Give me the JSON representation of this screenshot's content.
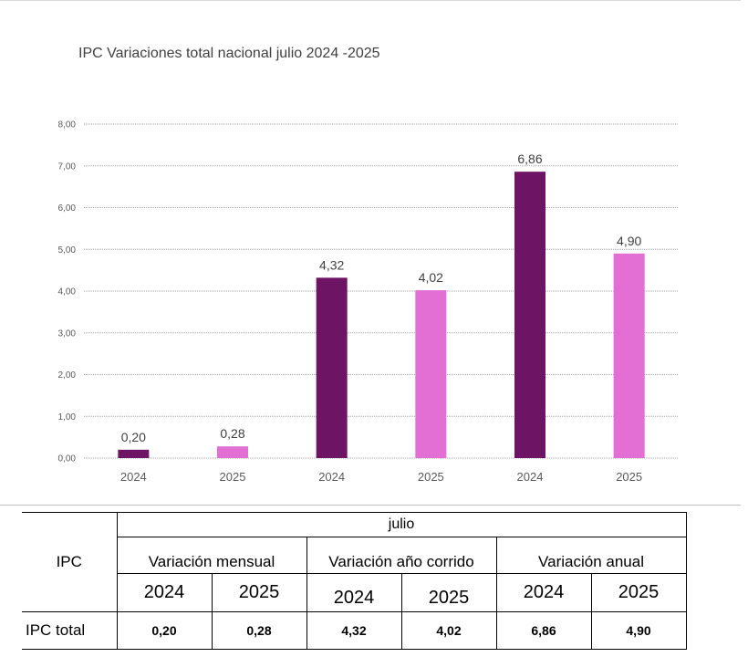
{
  "chart_data": {
    "type": "bar",
    "title": "IPC Variaciones total nacional julio  2024 -2025",
    "categories": [
      "2024",
      "2025",
      "2024",
      "2025",
      "2024",
      "2025"
    ],
    "values": [
      0.2,
      0.28,
      4.32,
      4.02,
      6.86,
      4.9
    ],
    "data_labels": [
      "0,20",
      "0,28",
      "4,32",
      "4,02",
      "6,86",
      "4,90"
    ],
    "y_ticks": [
      "0,00",
      "1,00",
      "2,00",
      "3,00",
      "4,00",
      "5,00",
      "6,00",
      "7,00",
      "8,00"
    ],
    "ylim": [
      0,
      8
    ],
    "grid": true,
    "bar_colors": [
      "#6d1465",
      "#e36fd5",
      "#6d1465",
      "#e36fd5",
      "#6d1465",
      "#e36fd5"
    ]
  },
  "table": {
    "row_header": "IPC",
    "month": "julio",
    "groups": [
      "Variación mensual",
      "Variación año corrido",
      "Variación anual"
    ],
    "years": [
      "2024",
      "2025",
      "2024",
      "2025",
      "2024",
      "2025"
    ],
    "row_label": "IPC total",
    "values": [
      "0,20",
      "0,28",
      "4,32",
      "4,02",
      "6,86",
      "4,90"
    ]
  }
}
